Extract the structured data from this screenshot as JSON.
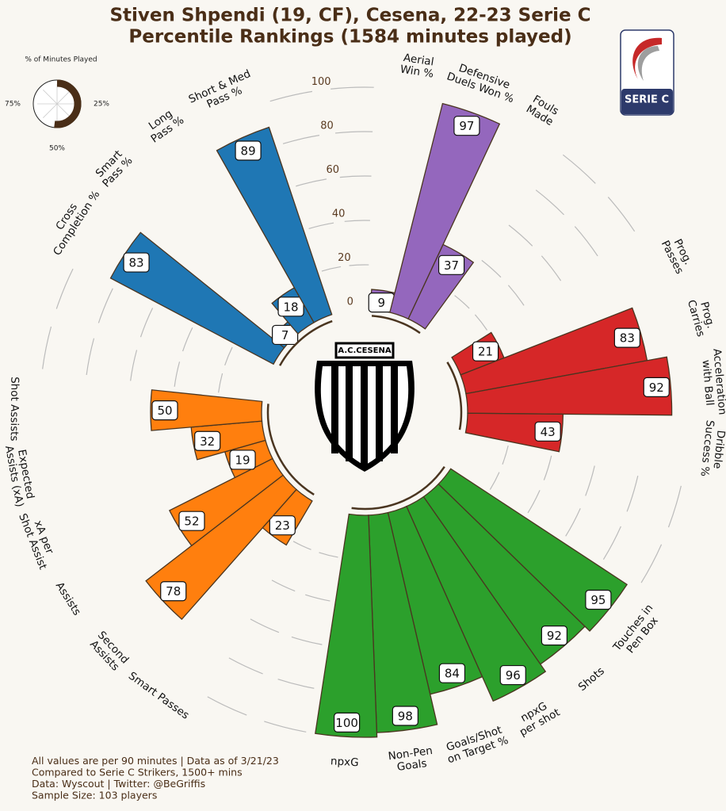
{
  "chart_data": {
    "type": "polar_bar",
    "title": [
      "Stiven Shpendi (19, CF), Cesena, 22-23 Serie C",
      "Percentile Rankings (1584 minutes played)"
    ],
    "rlim": [
      0,
      100
    ],
    "rticks": [
      0,
      20,
      40,
      60,
      80,
      100
    ],
    "groups": [
      {
        "color": "#9467bd",
        "categories": [
          [
            "Aerial",
            "Win %"
          ],
          [
            "Defensive",
            "Duels Won %"
          ],
          [
            "Fouls",
            "Made"
          ]
        ],
        "values": [
          9,
          97,
          37
        ]
      },
      {
        "color": "#d62728",
        "categories": [
          [
            "Prog.",
            "Passes"
          ],
          [
            "Prog.",
            "Carries"
          ],
          [
            "Acceleration",
            "with Ball"
          ],
          [
            "Dribble",
            "Success %"
          ]
        ],
        "values": [
          21,
          83,
          92,
          43
        ]
      },
      {
        "color": "#2ca02c",
        "categories": [
          [
            "Touches in",
            "Pen Box"
          ],
          [
            "Shots"
          ],
          [
            "npxG",
            "per shot"
          ],
          [
            "Goals/Shot",
            "on Target %"
          ],
          [
            "Non-Pen",
            "Goals"
          ],
          [
            "npxG"
          ]
        ],
        "values": [
          95,
          92,
          96,
          84,
          98,
          100
        ]
      },
      {
        "color": "#ff7f0e",
        "categories": [
          [
            "Smart Passes"
          ],
          [
            "Second",
            "Assists"
          ],
          [
            "Assists"
          ],
          [
            "xA per",
            "Shot Assist"
          ],
          [
            "Expected",
            "Assists (xA)"
          ],
          [
            "Shot Assists"
          ]
        ],
        "values": [
          23,
          78,
          52,
          19,
          32,
          50
        ]
      },
      {
        "color": "#1f77b4",
        "categories": [
          [
            "Cross",
            "Completion %"
          ],
          [
            "Smart",
            "Pass %"
          ],
          [
            "Long",
            "Pass %"
          ],
          [
            "Short & Med",
            "Pass %"
          ]
        ],
        "values": [
          83,
          7,
          18,
          89
        ]
      }
    ]
  },
  "minutes_gauge": {
    "title": "% of Minutes Played",
    "value": 52,
    "color": "#4a2e17",
    "ticks": [
      {
        "value": 25,
        "label": "25%"
      },
      {
        "value": 50,
        "label": "50%"
      },
      {
        "value": 75,
        "label": "75%"
      }
    ]
  },
  "club_logo": {
    "text": "A.C.CESENA"
  },
  "league_logo": {
    "text": "SERIE C"
  },
  "footer": [
    "All values are per 90 minutes | Data as of 3/21/23",
    "Compared to Serie C Strikers, 1500+ mins",
    "Data: Wyscout | Twitter: @BeGriffis",
    "Sample Size: 103 players"
  ]
}
